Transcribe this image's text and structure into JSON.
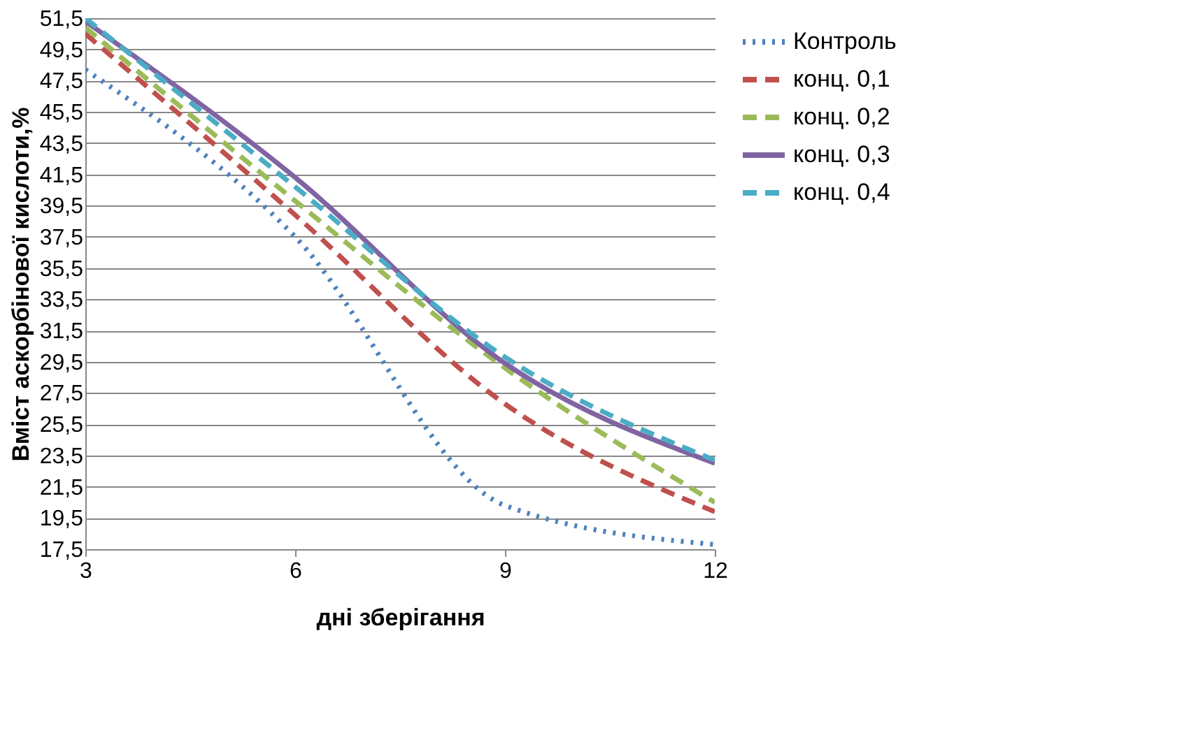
{
  "chart_data": {
    "type": "line",
    "xlabel": "дні зберігання",
    "ylabel": "Вміст аскорбінової кислоти,%",
    "x": [
      3,
      6,
      9,
      12
    ],
    "series": [
      {
        "name": "Контроль",
        "color": "#4f81bd",
        "line_style": "dotted",
        "values": [
          48.2,
          37.5,
          20.3,
          17.8
        ]
      },
      {
        "name": "конц. 0,1",
        "color": "#c0504d",
        "line_style": "dashed",
        "values": [
          50.5,
          38.9,
          26.8,
          19.9
        ]
      },
      {
        "name": "конц. 0,2",
        "color": "#9bbb59",
        "line_style": "dashed",
        "values": [
          50.9,
          39.8,
          29.1,
          20.5
        ]
      },
      {
        "name": "конц. 0,3",
        "color": "#8064a2",
        "line_style": "solid",
        "values": [
          51.3,
          41.3,
          29.4,
          23.0
        ]
      },
      {
        "name": "конц. 0,4",
        "color": "#4bacc6",
        "line_style": "dashed",
        "values": [
          51.5,
          40.7,
          29.8,
          23.2
        ]
      }
    ],
    "xlim": [
      3,
      12
    ],
    "xticks": [
      3,
      6,
      9,
      12
    ],
    "ylim": [
      17.5,
      51.5
    ],
    "yticks": [
      {
        "value": 17.5,
        "label": "17,5"
      },
      {
        "value": 19.5,
        "label": "19,5"
      },
      {
        "value": 21.5,
        "label": "21,5"
      },
      {
        "value": 23.5,
        "label": "23,5"
      },
      {
        "value": 25.5,
        "label": "25,5"
      },
      {
        "value": 27.5,
        "label": "27,5"
      },
      {
        "value": 29.5,
        "label": "29,5"
      },
      {
        "value": 31.5,
        "label": "31,5"
      },
      {
        "value": 33.5,
        "label": "33,5"
      },
      {
        "value": 35.5,
        "label": "35,5"
      },
      {
        "value": 37.5,
        "label": "37,5"
      },
      {
        "value": 39.5,
        "label": "39,5"
      },
      {
        "value": 41.5,
        "label": "41,5"
      },
      {
        "value": 43.5,
        "label": "43,5"
      },
      {
        "value": 45.5,
        "label": "45,5"
      },
      {
        "value": 47.5,
        "label": "47,5"
      },
      {
        "value": 49.5,
        "label": "49,5"
      },
      {
        "value": 51.5,
        "label": "51,5"
      }
    ],
    "grid": "y",
    "legend": "right"
  }
}
